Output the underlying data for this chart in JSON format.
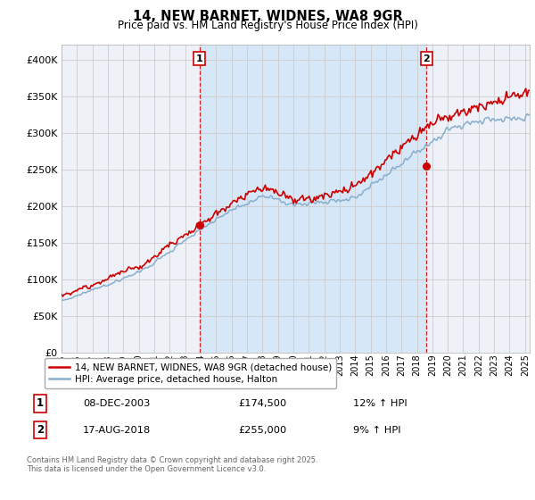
{
  "title": "14, NEW BARNET, WIDNES, WA8 9GR",
  "subtitle": "Price paid vs. HM Land Registry's House Price Index (HPI)",
  "legend_label_red": "14, NEW BARNET, WIDNES, WA8 9GR (detached house)",
  "legend_label_blue": "HPI: Average price, detached house, Halton",
  "annotation1_label": "1",
  "annotation1_date": "08-DEC-2003",
  "annotation1_price": "£174,500",
  "annotation1_hpi": "12% ↑ HPI",
  "annotation2_label": "2",
  "annotation2_date": "17-AUG-2018",
  "annotation2_price": "£255,000",
  "annotation2_hpi": "9% ↑ HPI",
  "footer": "Contains HM Land Registry data © Crown copyright and database right 2025.\nThis data is licensed under the Open Government Licence v3.0.",
  "color_red": "#cc0000",
  "color_blue": "#87AECE",
  "color_bg_chart": "#eef2f8",
  "color_bg_shaded": "#d6e8f7",
  "color_grid": "#cccccc",
  "ann1_year": 2003.92,
  "ann1_price": 174500,
  "ann2_year": 2018.62,
  "ann2_price": 255000,
  "start_year": 1995.0,
  "end_year": 2025.3,
  "ylim_max": 420000,
  "yticks": [
    0,
    50000,
    100000,
    150000,
    200000,
    250000,
    300000,
    350000,
    400000
  ]
}
